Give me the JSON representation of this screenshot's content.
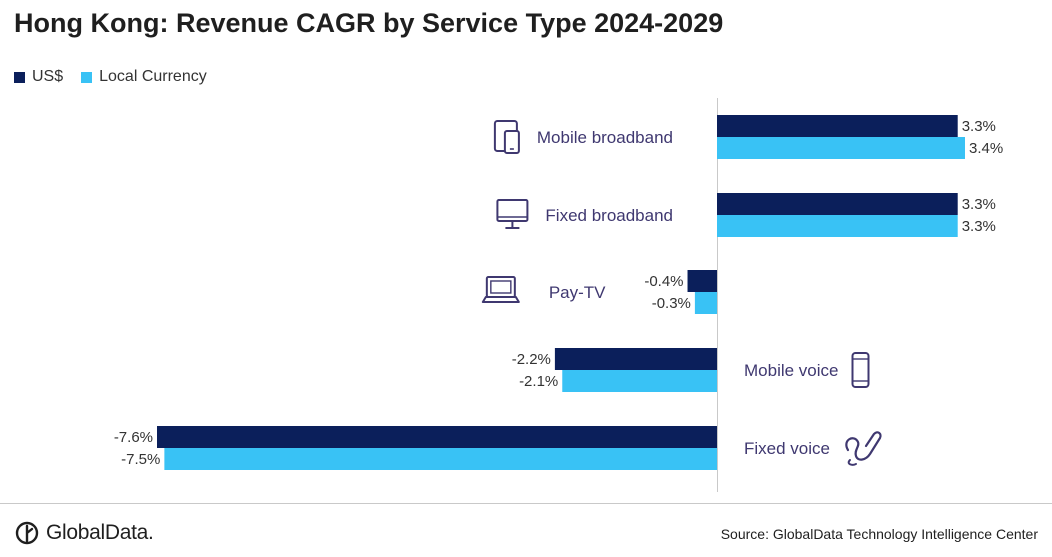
{
  "colors": {
    "usd": "#0b1f5b",
    "local": "#39c2f5",
    "label": "#3f3870",
    "icon": "#3f3870",
    "value": "#333333"
  },
  "chart_data": {
    "type": "bar",
    "orientation": "horizontal",
    "title": "Hong Kong: Revenue CAGR by Service Type 2024-2029",
    "categories": [
      "Mobile broadband",
      "Fixed broadband",
      "Pay-TV",
      "Mobile voice",
      "Fixed voice"
    ],
    "category_icons": [
      "tablet-phone-icon",
      "monitor-icon",
      "laptop-icon",
      "mobile-phone-icon",
      "landline-phone-icon"
    ],
    "series": [
      {
        "name": "US$",
        "values": [
          3.3,
          3.3,
          -0.4,
          -2.2,
          -7.6
        ],
        "labels": [
          "3.3%",
          "3.3%",
          "-0.4%",
          "-2.2%",
          "-7.6%"
        ]
      },
      {
        "name": "Local Currency",
        "values": [
          3.4,
          3.3,
          -0.3,
          -2.1,
          -7.5
        ],
        "labels": [
          "3.4%",
          "3.3%",
          "-0.3%",
          "-2.1%",
          "-7.5%"
        ]
      }
    ],
    "xlim": [
      -7.6,
      3.4
    ],
    "grid": false,
    "legend_position": "top-left"
  },
  "legend": {
    "usd_label": "US$",
    "local_label": "Local Currency"
  },
  "footer": {
    "brand": "GlobalData.",
    "source": "Source: GlobalData Technology Intelligence Center"
  }
}
